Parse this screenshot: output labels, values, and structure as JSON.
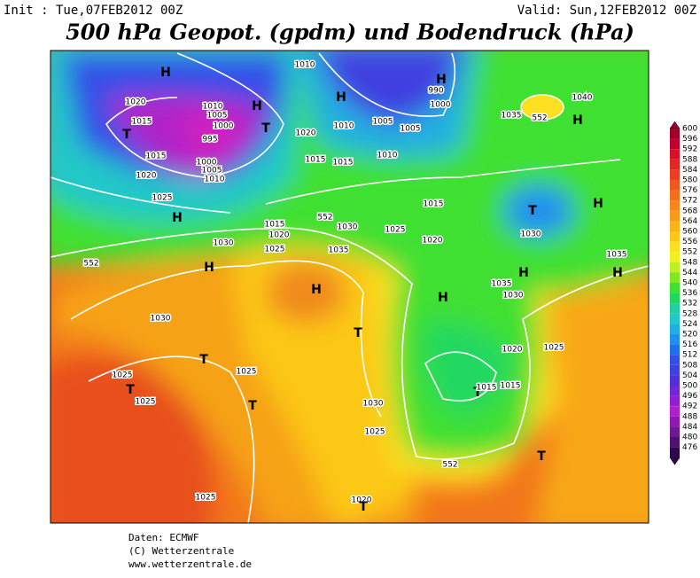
{
  "header": {
    "init": "Init : Tue,07FEB2012 00Z",
    "valid": "Valid: Sun,12FEB2012 00Z",
    "title": "500 hPa Geopot. (gpdm) und Bodendruck (hPa)"
  },
  "colorbar": {
    "levels": [
      600,
      596,
      592,
      588,
      584,
      580,
      576,
      572,
      568,
      564,
      560,
      556,
      552,
      548,
      544,
      540,
      536,
      532,
      528,
      524,
      520,
      516,
      512,
      508,
      504,
      500,
      496,
      492,
      488,
      484,
      480,
      476
    ],
    "colors": [
      "#a0002a",
      "#c00030",
      "#d8102a",
      "#e02820",
      "#e84020",
      "#ee5a1e",
      "#f2701c",
      "#f5861a",
      "#f89c18",
      "#fab418",
      "#fcc818",
      "#fee020",
      "#f0f020",
      "#c0f020",
      "#80e820",
      "#40e030",
      "#20d860",
      "#20d0a0",
      "#20c8c8",
      "#20b0e0",
      "#2090f0",
      "#2070f0",
      "#3050e8",
      "#4040e0",
      "#5030d8",
      "#7028d8",
      "#9020d0",
      "#b020c8",
      "#9018b0",
      "#701890",
      "#501070",
      "#300850"
    ]
  },
  "map_labels": [
    "H",
    "1010",
    "1020",
    "1015",
    "T",
    "1010",
    "1005",
    "1000",
    "995",
    "1015",
    "1000",
    "1005",
    "1010",
    "1020",
    "1025",
    "H",
    "T",
    "H",
    "1020",
    "1010",
    "1015",
    "1015",
    "H",
    "1005",
    "1010",
    "1005",
    "990",
    "1000",
    "H",
    "1035",
    "552",
    "1040",
    "H",
    "T",
    "1030",
    "H",
    "1015",
    "1020",
    "1025",
    "1030",
    "1015",
    "1020",
    "1025",
    "1030",
    "552",
    "1035",
    "H",
    "H",
    "552",
    "1030",
    "T",
    "T",
    "1025",
    "T",
    "1025",
    "1025",
    "T",
    "1030",
    "1025",
    "552",
    "1020",
    "1025",
    "H",
    "H",
    "H",
    "1035",
    "1030",
    "1035",
    "1020",
    "1025",
    "T",
    "1015",
    "1015",
    "T",
    "T"
  ],
  "footer": [
    "Daten: ECMWF",
    "(C) Wetterzentrale",
    "www.wetterzentrale.de"
  ]
}
